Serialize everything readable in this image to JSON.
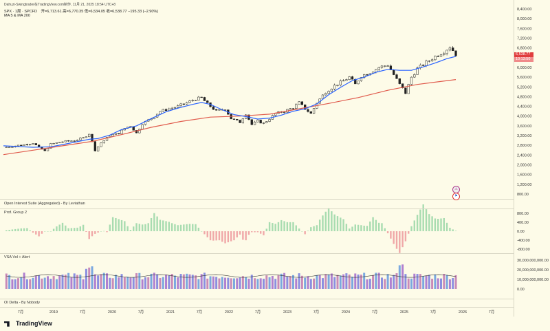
{
  "header": {
    "title": "Dahuzi-Swingtrader在TradingView.com制作, 11月 21, 2025 18:54 UTC+8",
    "symbol": "SPX · 1周 · SPCFD",
    "ohlc": "开=6,713.61 高=6,770.35 低=6,534.05 收=6,538.77 −195.33 (−2.90%)",
    "ma_label": "MA 5 & MA 200"
  },
  "price_tag": {
    "value": "6,538.77",
    "countdown": "10:13:50"
  },
  "panes": {
    "oi": "Open Interest Suite (Aggregated) - By Leviathan",
    "prof": "Prof. Group 2",
    "vsa": "VSA Vol + Alert",
    "delta": "OI Delta - By Nobody"
  },
  "icons": {
    "alert": "bell-icon",
    "flag": "us-flag-icon"
  },
  "brand": "TradingView",
  "colors": {
    "up": "#26a69a",
    "down": "#ef5350",
    "ma_fast": "#2962ff",
    "ma_slow": "#e05a4c",
    "bg": "#fdfbe8"
  },
  "chart_data": {
    "type": "candlestick",
    "price_axis_ticks": [
      "8,400.00",
      "8,000.00",
      "7,600.00",
      "7,200.00",
      "6,800.00",
      "6,400.00",
      "6,000.00",
      "5,600.00",
      "5,200.00",
      "4,800.00",
      "4,400.00",
      "4,000.00",
      "3,600.00",
      "3,200.00",
      "2,800.00",
      "2,400.00",
      "2,000.00",
      "1,600.00",
      "1,200.00",
      "800.00"
    ],
    "prof_axis_ticks": [
      "800.00",
      "400.00",
      "0.00",
      "-400.00",
      "-800.00"
    ],
    "vol_axis_ticks": [
      "30,000,000,000.00",
      "20,000,000,000.00",
      "10,000,000,000.00",
      "0.00"
    ],
    "time_labels": [
      "7月",
      "2019",
      "7月",
      "2020",
      "7月",
      "2021",
      "7月",
      "2022",
      "7月",
      "2023",
      "7月",
      "2024",
      "7月",
      "2025",
      "7月",
      "2026",
      "7月"
    ],
    "ylim": [
      600,
      8600
    ],
    "close_path": [
      [
        0,
        2710
      ],
      [
        4,
        2780
      ],
      [
        8,
        2850
      ],
      [
        10,
        2900
      ],
      [
        12,
        2710
      ],
      [
        14,
        2560
      ],
      [
        16,
        2850
      ],
      [
        20,
        2950
      ],
      [
        24,
        3000
      ],
      [
        27,
        3100
      ],
      [
        29,
        3280
      ],
      [
        31,
        2600
      ],
      [
        33,
        2900
      ],
      [
        36,
        3200
      ],
      [
        39,
        3300
      ],
      [
        41,
        3500
      ],
      [
        43,
        3600
      ],
      [
        45,
        3300
      ],
      [
        47,
        3700
      ],
      [
        50,
        3900
      ],
      [
        53,
        4200
      ],
      [
        56,
        4300
      ],
      [
        59,
        4400
      ],
      [
        62,
        4550
      ],
      [
        65,
        4700
      ],
      [
        67,
        4750
      ],
      [
        69,
        4500
      ],
      [
        72,
        4200
      ],
      [
        75,
        4300
      ],
      [
        77,
        3900
      ],
      [
        80,
        3750
      ],
      [
        82,
        4100
      ],
      [
        84,
        3650
      ],
      [
        86,
        3800
      ],
      [
        88,
        3700
      ],
      [
        90,
        3900
      ],
      [
        92,
        4100
      ],
      [
        95,
        4200
      ],
      [
        98,
        4350
      ],
      [
        100,
        4550
      ],
      [
        102,
        4300
      ],
      [
        104,
        4100
      ],
      [
        106,
        4550
      ],
      [
        109,
        5000
      ],
      [
        112,
        5250
      ],
      [
        115,
        5450
      ],
      [
        117,
        5600
      ],
      [
        119,
        5300
      ],
      [
        121,
        5650
      ],
      [
        124,
        5800
      ],
      [
        127,
        6000
      ],
      [
        130,
        6100
      ],
      [
        132,
        5700
      ],
      [
        134,
        5300
      ],
      [
        136,
        4950
      ],
      [
        138,
        5600
      ],
      [
        140,
        5950
      ],
      [
        143,
        6200
      ],
      [
        146,
        6450
      ],
      [
        149,
        6650
      ],
      [
        151,
        6850
      ],
      [
        152,
        6700
      ],
      [
        153,
        6539
      ]
    ],
    "ma_fast": [
      [
        0,
        2780
      ],
      [
        10,
        2720
      ],
      [
        16,
        2740
      ],
      [
        20,
        2830
      ],
      [
        25,
        2950
      ],
      [
        29,
        3050
      ],
      [
        32,
        3080
      ],
      [
        36,
        3220
      ],
      [
        40,
        3450
      ],
      [
        45,
        3600
      ],
      [
        50,
        3900
      ],
      [
        55,
        4180
      ],
      [
        60,
        4360
      ],
      [
        64,
        4480
      ],
      [
        67,
        4560
      ],
      [
        70,
        4480
      ],
      [
        74,
        4260
      ],
      [
        78,
        4060
      ],
      [
        82,
        3980
      ],
      [
        86,
        3880
      ],
      [
        90,
        3920
      ],
      [
        94,
        4040
      ],
      [
        98,
        4200
      ],
      [
        102,
        4300
      ],
      [
        106,
        4500
      ],
      [
        110,
        4880
      ],
      [
        114,
        5180
      ],
      [
        118,
        5460
      ],
      [
        122,
        5600
      ],
      [
        126,
        5800
      ],
      [
        130,
        5920
      ],
      [
        134,
        5880
      ],
      [
        138,
        5880
      ],
      [
        142,
        6020
      ],
      [
        146,
        6180
      ],
      [
        150,
        6360
      ],
      [
        153,
        6450
      ]
    ],
    "ma_slow": [
      [
        0,
        2420
      ],
      [
        10,
        2600
      ],
      [
        20,
        2780
      ],
      [
        30,
        2960
      ],
      [
        40,
        3240
      ],
      [
        50,
        3540
      ],
      [
        60,
        3780
      ],
      [
        70,
        3960
      ],
      [
        80,
        4000
      ],
      [
        90,
        4080
      ],
      [
        100,
        4300
      ],
      [
        110,
        4520
      ],
      [
        120,
        4760
      ],
      [
        130,
        5060
      ],
      [
        140,
        5300
      ],
      [
        153,
        5500
      ]
    ]
  }
}
